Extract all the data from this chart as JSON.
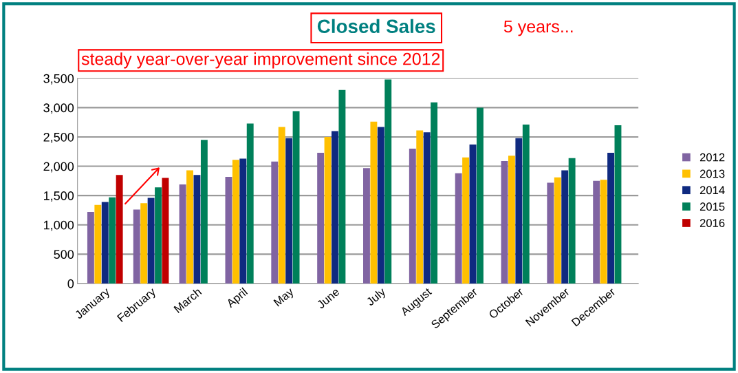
{
  "chart_data": {
    "type": "bar",
    "title": "Closed Sales",
    "annotations": [
      "5 years...",
      "steady year-over-year improvement since 2012"
    ],
    "categories": [
      "January",
      "February",
      "March",
      "April",
      "May",
      "June",
      "July",
      "August",
      "September",
      "October",
      "November",
      "December"
    ],
    "series": [
      {
        "name": "2012",
        "color": "#8064a2",
        "values": [
          1220,
          1260,
          1690,
          1820,
          2080,
          2230,
          1970,
          2300,
          1880,
          2090,
          1720,
          1750
        ]
      },
      {
        "name": "2013",
        "color": "#ffc000",
        "values": [
          1340,
          1370,
          1930,
          2110,
          2670,
          2500,
          2760,
          2610,
          2150,
          2180,
          1810,
          1770
        ]
      },
      {
        "name": "2014",
        "color": "#0f2a80",
        "values": [
          1390,
          1460,
          1850,
          2130,
          2480,
          2600,
          2670,
          2580,
          2370,
          2480,
          1930,
          2230
        ]
      },
      {
        "name": "2015",
        "color": "#00805a",
        "values": [
          1470,
          1640,
          2450,
          2730,
          2940,
          3300,
          3480,
          3090,
          3000,
          2710,
          2140,
          2700
        ]
      },
      {
        "name": "2016",
        "color": "#c00000",
        "values": [
          1850,
          1800,
          null,
          null,
          null,
          null,
          null,
          null,
          null,
          null,
          null,
          null
        ]
      }
    ],
    "ylim": [
      0,
      3500
    ],
    "yticks": [
      {
        "value": 0,
        "label": "0"
      },
      {
        "value": 500,
        "label": "500"
      },
      {
        "value": 1000,
        "label": "1,000"
      },
      {
        "value": 1500,
        "label": "1,500"
      },
      {
        "value": 2000,
        "label": "2,000"
      },
      {
        "value": 2500,
        "label": "2,500"
      },
      {
        "value": 3000,
        "label": "3,000"
      },
      {
        "value": 3500,
        "label": "3,500"
      }
    ],
    "grid": "y",
    "legend": "right"
  }
}
